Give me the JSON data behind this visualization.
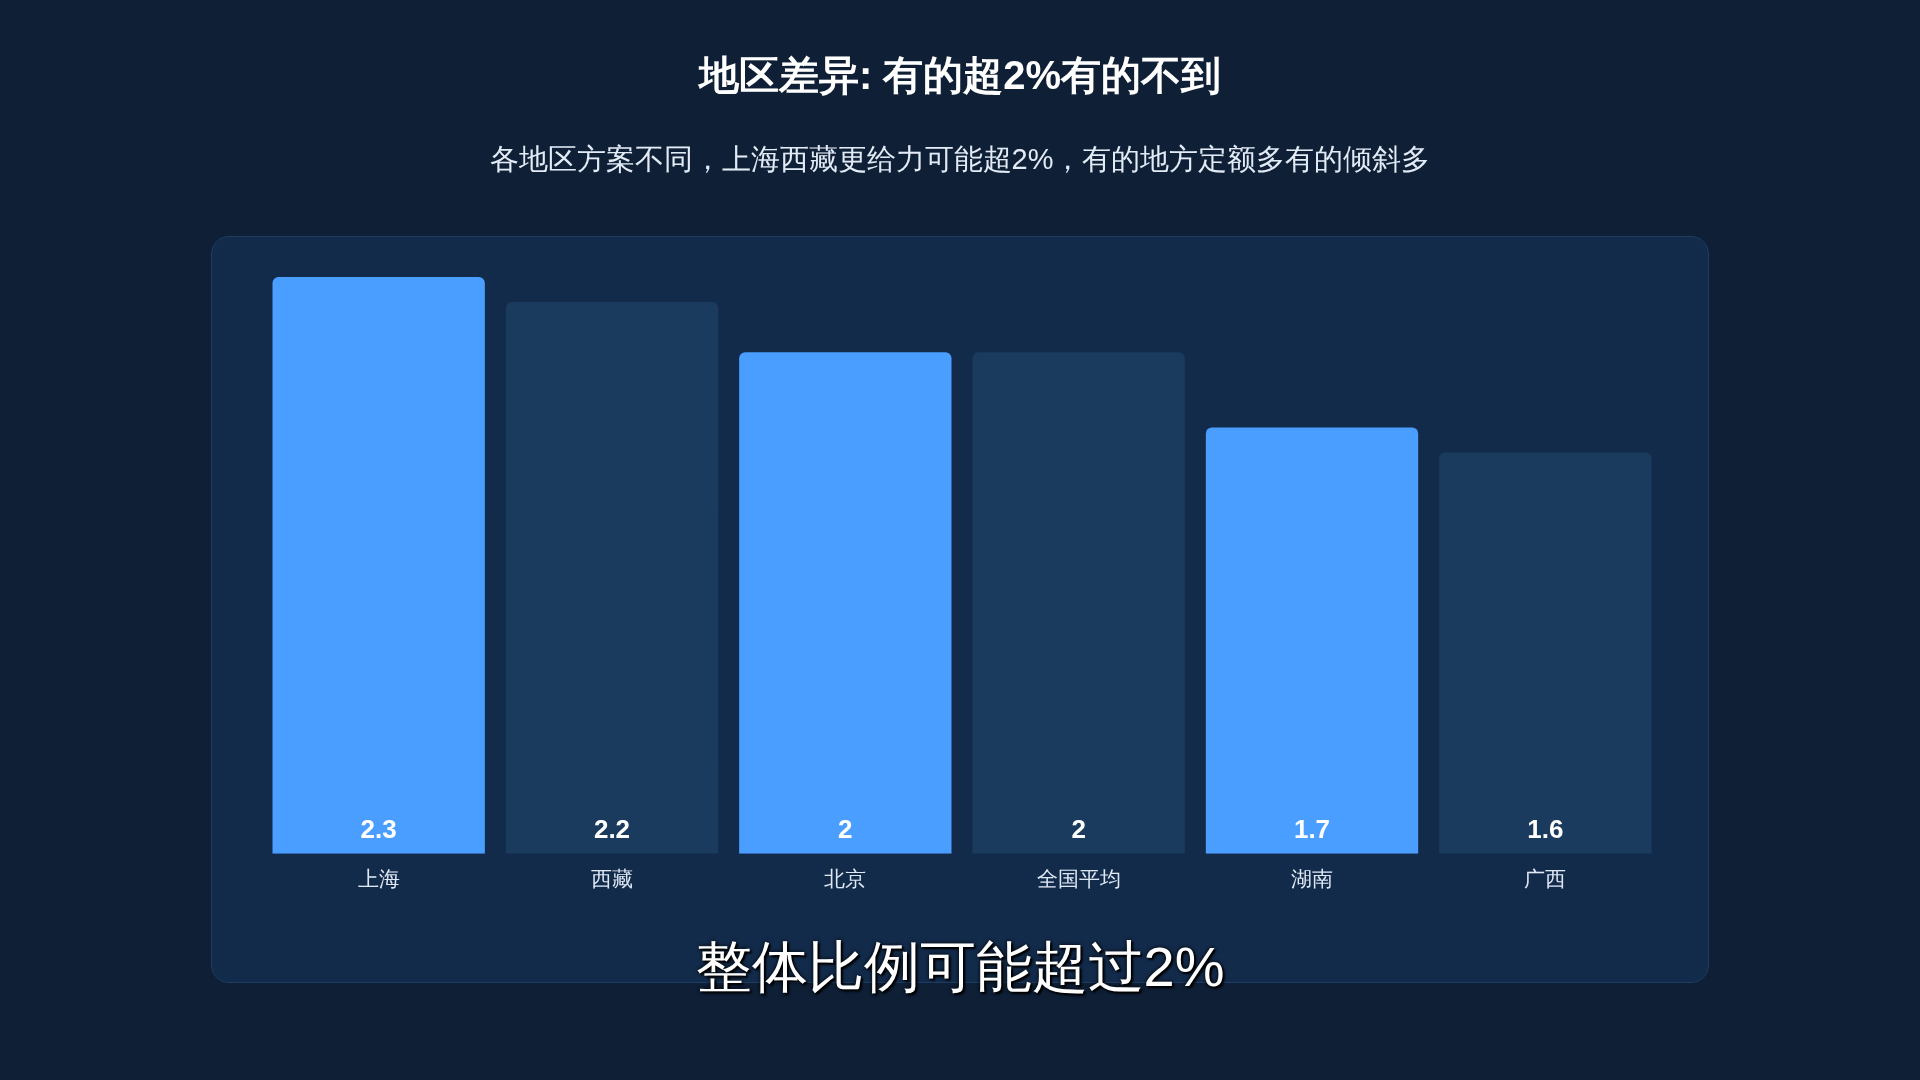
{
  "chart_data": {
    "type": "bar",
    "title": "地区差异: 有的超2%有的不到",
    "subtitle": "各地区方案不同，上海西藏更给力可能超2%，有的地方定额多有的倾斜多",
    "categories": [
      "上海",
      "西藏",
      "北京",
      "全国平均",
      "湖南",
      "广西"
    ],
    "values": [
      2.3,
      2.2,
      2,
      2,
      1.7,
      1.6
    ],
    "colors": [
      "#4a9eff",
      "#1a3a5e",
      "#4a9eff",
      "#1a3a5e",
      "#4a9eff",
      "#1a3a5e"
    ],
    "data_labels": true,
    "grid": false,
    "legend": false,
    "annotations": [
      "整体比例可能超过2%"
    ]
  }
}
